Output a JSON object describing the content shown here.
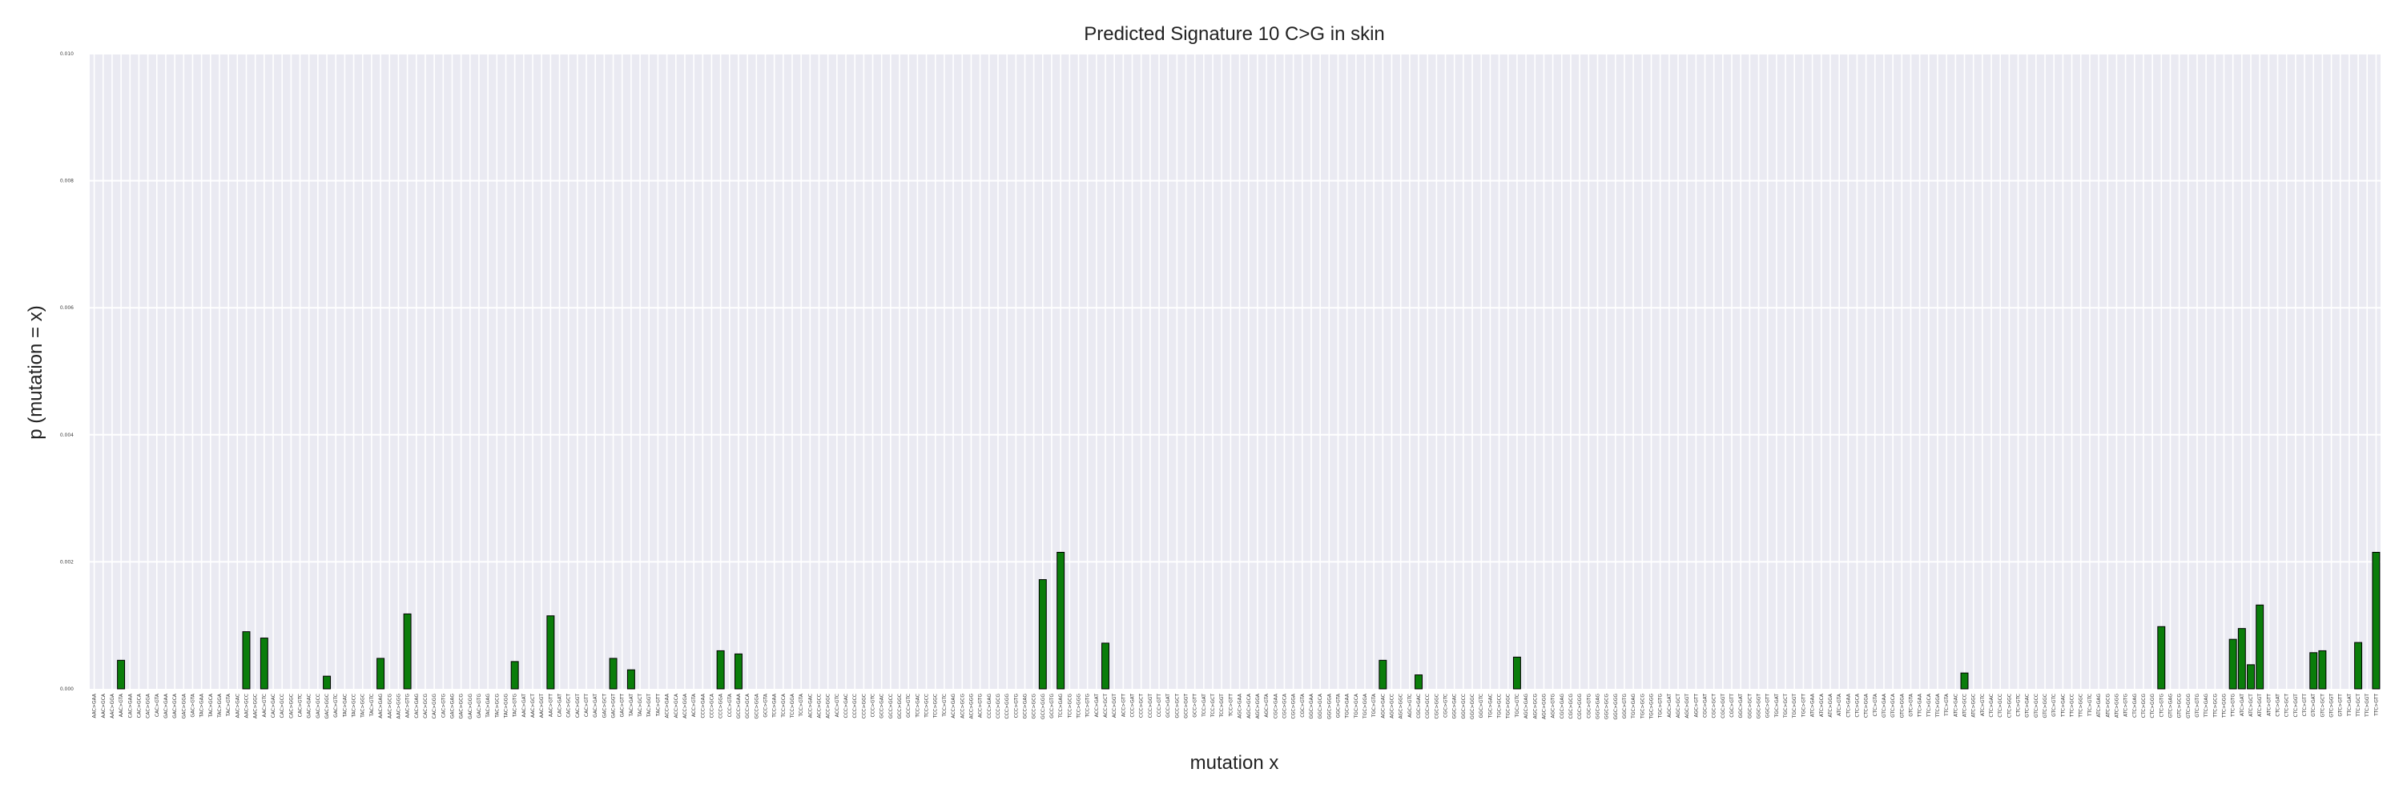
{
  "chart_data": {
    "type": "bar",
    "title": "Predicted Signature 10 C>G in skin",
    "xlabel": "mutation x",
    "ylabel": "p (mutation = x)",
    "ylim": [
      0,
      0.01
    ],
    "yticks": [
      "0.000",
      "0.002",
      "0.004",
      "0.006",
      "0.008",
      "0.010"
    ],
    "grid": true,
    "legend": "none",
    "categories": [
      "AAC>GAA",
      "AAC>GCA",
      "AAC>GGA",
      "AAC>GTA",
      "CAC>GAA",
      "CAC>GCA",
      "CAC>GGA",
      "CAC>GTA",
      "GAC>GAA",
      "GAC>GCA",
      "GAC>GGA",
      "GAC>GTA",
      "TAC>GAA",
      "TAC>GCA",
      "TAC>GGA",
      "TAC>GTA",
      "AAC>GAC",
      "AAC>GCC",
      "AAC>GGC",
      "AAC>GTC",
      "CAC>GAC",
      "CAC>GCC",
      "CAC>GGC",
      "CAC>GTC",
      "GAC>GAC",
      "GAC>GCC",
      "GAC>GGC",
      "GAC>GTC",
      "TAC>GAC",
      "TAC>GCC",
      "TAC>GGC",
      "TAC>GTC",
      "AAC>GAG",
      "AAC>GCG",
      "AAC>GGG",
      "AAC>GTG",
      "CAC>GAG",
      "CAC>GCG",
      "CAC>GGG",
      "CAC>GTG",
      "GAC>GAG",
      "GAC>GCG",
      "GAC>GGG",
      "GAC>GTG",
      "TAC>GAG",
      "TAC>GCG",
      "TAC>GGG",
      "TAC>GTG",
      "AAC>GAT",
      "AAC>GCT",
      "AAC>GGT",
      "AAC>GTT",
      "CAC>GAT",
      "CAC>GCT",
      "CAC>GGT",
      "CAC>GTT",
      "GAC>GAT",
      "GAC>GCT",
      "GAC>GGT",
      "GAC>GTT",
      "TAC>GAT",
      "TAC>GCT",
      "TAC>GGT",
      "TAC>GTT",
      "ACC>GAA",
      "ACC>GCA",
      "ACC>GGA",
      "ACC>GTA",
      "CCC>GAA",
      "CCC>GCA",
      "CCC>GGA",
      "CCC>GTA",
      "GCC>GAA",
      "GCC>GCA",
      "GCC>GGA",
      "GCC>GTA",
      "TCC>GAA",
      "TCC>GCA",
      "TCC>GGA",
      "TCC>GTA",
      "ACC>GAC",
      "ACC>GCC",
      "ACC>GGC",
      "ACC>GTC",
      "CCC>GAC",
      "CCC>GCC",
      "CCC>GGC",
      "CCC>GTC",
      "GCC>GAC",
      "GCC>GCC",
      "GCC>GGC",
      "GCC>GTC",
      "TCC>GAC",
      "TCC>GCC",
      "TCC>GGC",
      "TCC>GTC",
      "ACC>GAG",
      "ACC>GCG",
      "ACC>GGG",
      "ACC>GTG",
      "CCC>GAG",
      "CCC>GCG",
      "CCC>GGG",
      "CCC>GTG",
      "GCC>GAG",
      "GCC>GCG",
      "GCC>GGG",
      "GCC>GTG",
      "TCC>GAG",
      "TCC>GCG",
      "TCC>GGG",
      "TCC>GTG",
      "ACC>GAT",
      "ACC>GCT",
      "ACC>GGT",
      "ACC>GTT",
      "CCC>GAT",
      "CCC>GCT",
      "CCC>GGT",
      "CCC>GTT",
      "GCC>GAT",
      "GCC>GCT",
      "GCC>GGT",
      "GCC>GTT",
      "TCC>GAT",
      "TCC>GCT",
      "TCC>GGT",
      "TCC>GTT",
      "AGC>GAA",
      "AGC>GCA",
      "AGC>GGA",
      "AGC>GTA",
      "CGC>GAA",
      "CGC>GCA",
      "CGC>GGA",
      "CGC>GTA",
      "GGC>GAA",
      "GGC>GCA",
      "GGC>GGA",
      "GGC>GTA",
      "TGC>GAA",
      "TGC>GCA",
      "TGC>GGA",
      "TGC>GTA",
      "AGC>GAC",
      "AGC>GCC",
      "AGC>GGC",
      "AGC>GTC",
      "CGC>GAC",
      "CGC>GCC",
      "CGC>GGC",
      "CGC>GTC",
      "GGC>GAC",
      "GGC>GCC",
      "GGC>GGC",
      "GGC>GTC",
      "TGC>GAC",
      "TGC>GCC",
      "TGC>GGC",
      "TGC>GTC",
      "AGC>GAG",
      "AGC>GCG",
      "AGC>GGG",
      "AGC>GTG",
      "CGC>GAG",
      "CGC>GCG",
      "CGC>GGG",
      "CGC>GTG",
      "GGC>GAG",
      "GGC>GCG",
      "GGC>GGG",
      "GGC>GTG",
      "TGC>GAG",
      "TGC>GCG",
      "TGC>GGG",
      "TGC>GTG",
      "AGC>GAT",
      "AGC>GCT",
      "AGC>GGT",
      "AGC>GTT",
      "CGC>GAT",
      "CGC>GCT",
      "CGC>GGT",
      "CGC>GTT",
      "GGC>GAT",
      "GGC>GCT",
      "GGC>GGT",
      "GGC>GTT",
      "TGC>GAT",
      "TGC>GCT",
      "TGC>GGT",
      "TGC>GTT",
      "ATC>GAA",
      "ATC>GCA",
      "ATC>GGA",
      "ATC>GTA",
      "CTC>GAA",
      "CTC>GCA",
      "CTC>GGA",
      "CTC>GTA",
      "GTC>GAA",
      "GTC>GCA",
      "GTC>GGA",
      "GTC>GTA",
      "TTC>GAA",
      "TTC>GCA",
      "TTC>GGA",
      "TTC>GTA",
      "ATC>GAC",
      "ATC>GCC",
      "ATC>GGC",
      "ATC>GTC",
      "CTC>GAC",
      "CTC>GCC",
      "CTC>GGC",
      "CTC>GTC",
      "GTC>GAC",
      "GTC>GCC",
      "GTC>GGC",
      "GTC>GTC",
      "TTC>GAC",
      "TTC>GCC",
      "TTC>GGC",
      "TTC>GTC",
      "ATC>GAG",
      "ATC>GCG",
      "ATC>GGG",
      "ATC>GTG",
      "CTC>GAG",
      "CTC>GCG",
      "CTC>GGG",
      "CTC>GTG",
      "GTC>GAG",
      "GTC>GCG",
      "GTC>GGG",
      "GTC>GTG",
      "TTC>GAG",
      "TTC>GCG",
      "TTC>GGG",
      "TTC>GTG",
      "ATC>GAT",
      "ATC>GCT",
      "ATC>GGT",
      "ATC>GTT",
      "CTC>GAT",
      "CTC>GCT",
      "CTC>GGT",
      "CTC>GTT",
      "GTC>GAT",
      "GTC>GCT",
      "GTC>GGT",
      "GTC>GTT",
      "TTC>GAT",
      "TTC>GCT",
      "TTC>GGT",
      "TTC>GTT"
    ],
    "values": [
      0,
      0,
      0,
      0.00045,
      0,
      0,
      0,
      0,
      0,
      0,
      0,
      0,
      0,
      0,
      0,
      0,
      0,
      0.0009,
      0,
      0.0008,
      0,
      0,
      0,
      0,
      0,
      0,
      0.0002,
      0,
      0,
      0,
      0,
      0,
      0.00048,
      0,
      0,
      0.00118,
      0,
      0,
      0,
      0,
      0,
      0,
      0,
      0,
      0,
      0,
      0,
      0.00043,
      0,
      0,
      0,
      0.00115,
      0,
      0,
      0,
      0,
      0,
      0,
      0.00048,
      0,
      0.0003,
      0,
      0,
      0,
      0,
      0,
      0,
      0,
      0,
      0,
      0.0006,
      0,
      0.00055,
      0,
      0,
      0,
      0,
      0,
      0,
      0,
      0,
      0,
      0,
      0,
      0,
      0,
      0,
      0,
      0,
      0,
      0,
      0,
      0,
      0,
      0,
      0,
      0,
      0,
      0,
      0,
      0,
      0,
      0,
      0,
      0,
      0,
      0.00172,
      0,
      0.00215,
      0,
      0,
      0,
      0,
      0.00072,
      0,
      0,
      0,
      0,
      0,
      0,
      0,
      0,
      0,
      0,
      0,
      0,
      0,
      0,
      0,
      0,
      0,
      0,
      0,
      0,
      0,
      0,
      0,
      0,
      0,
      0,
      0,
      0,
      0,
      0,
      0.00045,
      0,
      0,
      0,
      0.00022,
      0,
      0,
      0,
      0,
      0,
      0,
      0,
      0,
      0,
      0,
      0.0005,
      0,
      0,
      0,
      0,
      0,
      0,
      0,
      0,
      0,
      0,
      0,
      0,
      0,
      0,
      0,
      0,
      0,
      0,
      0,
      0,
      0,
      0,
      0,
      0,
      0,
      0,
      0,
      0,
      0,
      0,
      0,
      0,
      0,
      0,
      0,
      0,
      0,
      0,
      0,
      0,
      0,
      0,
      0,
      0,
      0,
      0,
      0,
      0,
      0,
      0.00025,
      0,
      0,
      0,
      0,
      0,
      0,
      0,
      0,
      0,
      0,
      0,
      0,
      0,
      0,
      0,
      0,
      0,
      0,
      0,
      0,
      0,
      0.00098,
      0,
      0,
      0,
      0,
      0,
      0,
      0,
      0.00078,
      0.00095,
      0.00038,
      0.00132,
      0,
      0,
      0,
      0,
      0,
      0.00057,
      0.0006,
      0,
      0,
      0,
      0.00073,
      0,
      0.00215
    ],
    "series_color": "#0a7d0a"
  }
}
